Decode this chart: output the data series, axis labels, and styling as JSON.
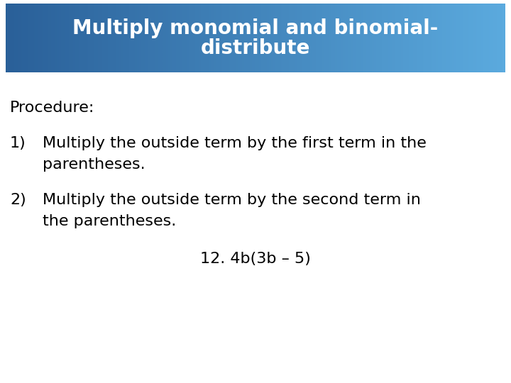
{
  "title_line1": "Multiply monomial and binomial-",
  "title_line2": "distribute",
  "title_bg_color_left": "#2a6099",
  "title_bg_color_right": "#5baade",
  "title_text_color": "#ffffff",
  "body_bg_color": "#ffffff",
  "procedure_label": "Procedure:",
  "step1_num": "1)",
  "step1_line1": "Multiply the outside term by the first term in the",
  "step1_line2": "parentheses.",
  "step2_num": "2)",
  "step2_line1": "Multiply the outside term by the second term in",
  "step2_line2": "the parentheses.",
  "example": "12. 4b(3b – 5)",
  "title_fontsize": 20,
  "body_fontsize": 16,
  "fig_width": 7.2,
  "fig_height": 5.4,
  "dpi": 100
}
